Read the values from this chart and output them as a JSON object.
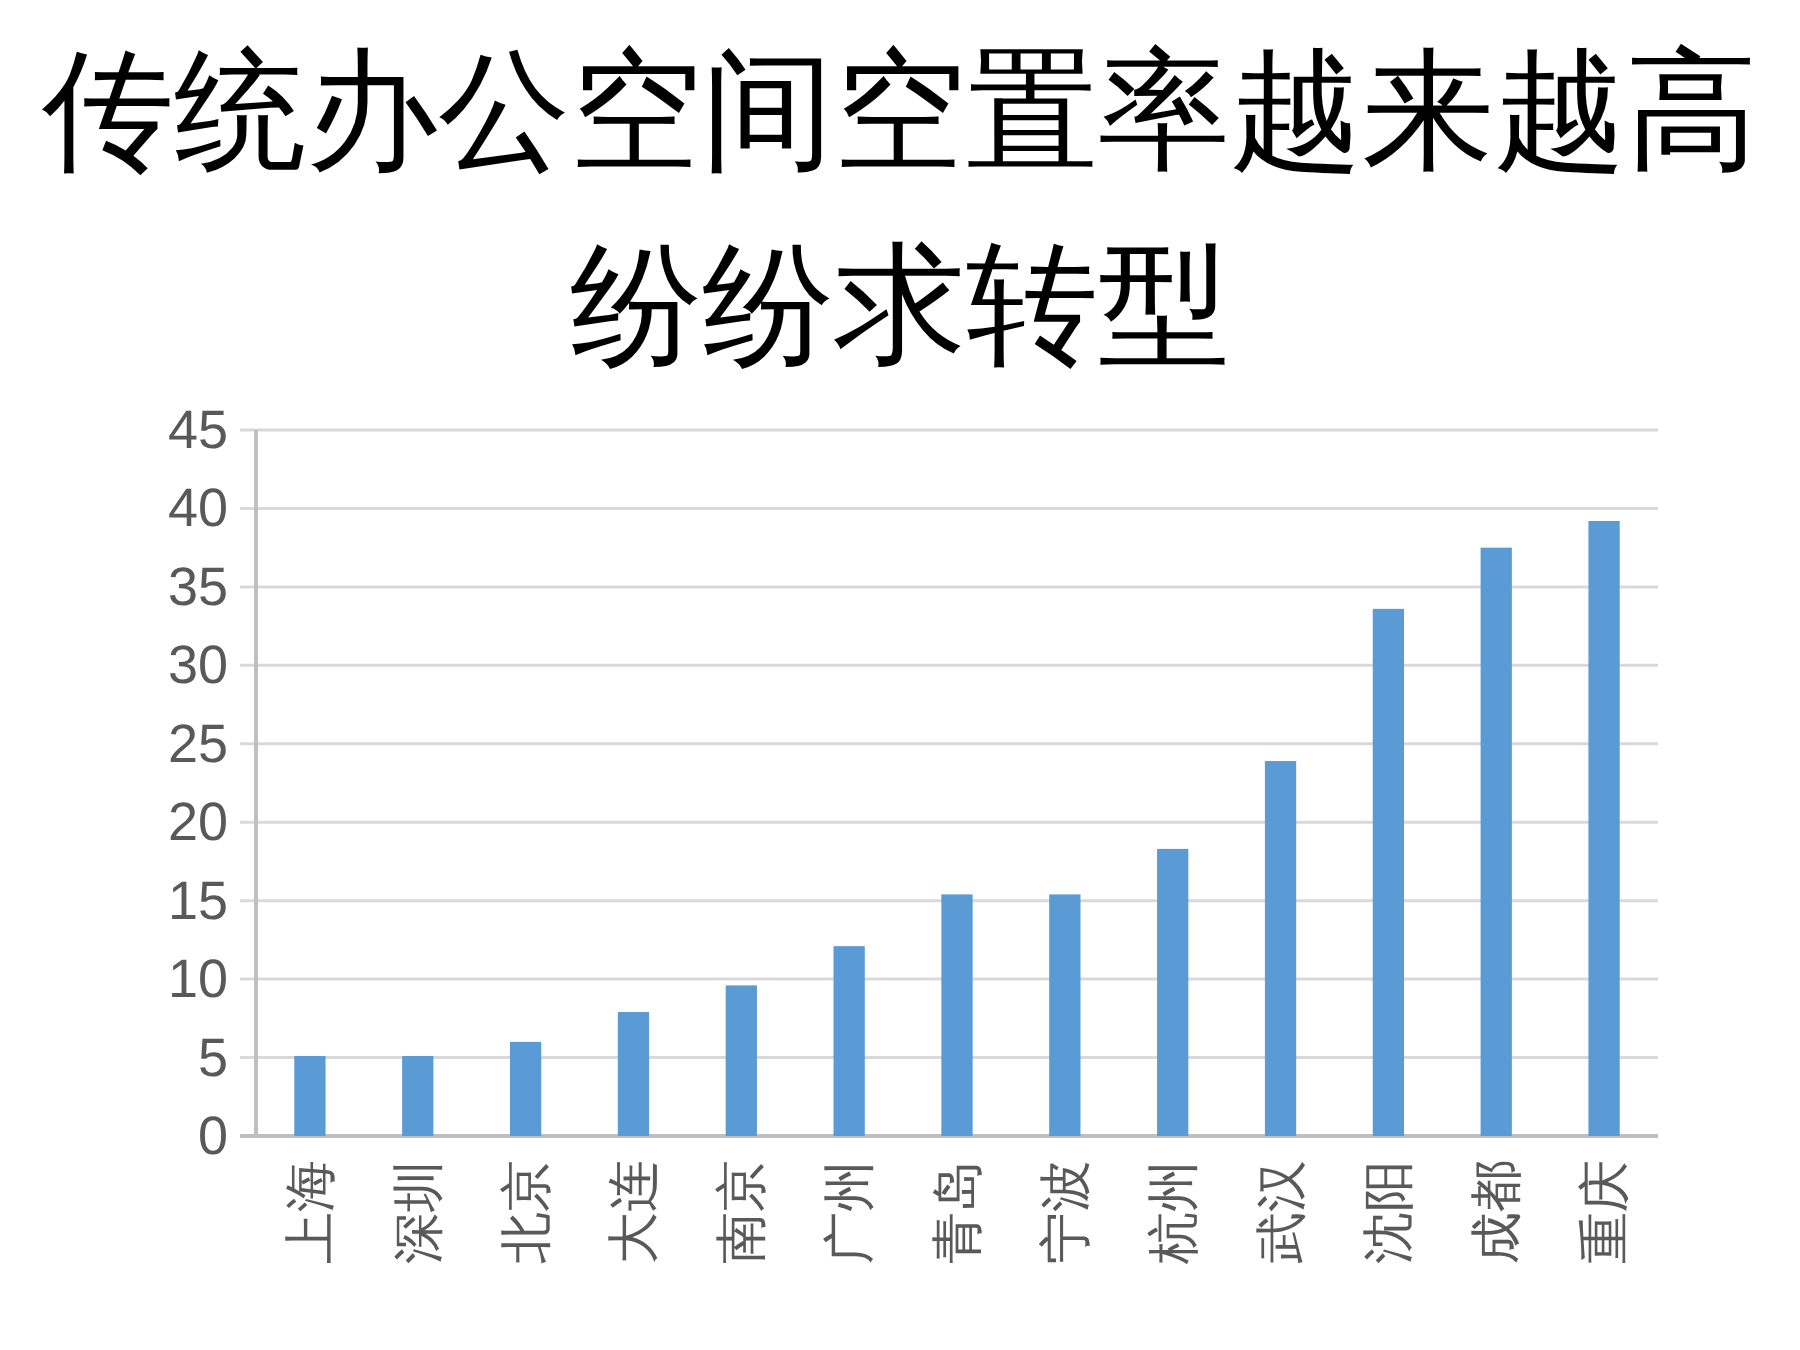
{
  "chart_data": {
    "type": "bar",
    "title": "传统办公空间空置率越来越高纷纷求转型",
    "categories": [
      "上海",
      "深圳",
      "北京",
      "大连",
      "南京",
      "广州",
      "青岛",
      "宁波",
      "杭州",
      "武汉",
      "沈阳",
      "成都",
      "重庆"
    ],
    "values": [
      5.1,
      5.1,
      6.0,
      7.9,
      9.6,
      12.1,
      15.4,
      15.4,
      18.3,
      23.9,
      33.6,
      37.5,
      39.2
    ],
    "color": "#5b9bd5",
    "ylim": [
      0,
      45
    ],
    "yticks": [
      0,
      5,
      10,
      15,
      20,
      25,
      30,
      35,
      40,
      45
    ],
    "grid": "y"
  }
}
